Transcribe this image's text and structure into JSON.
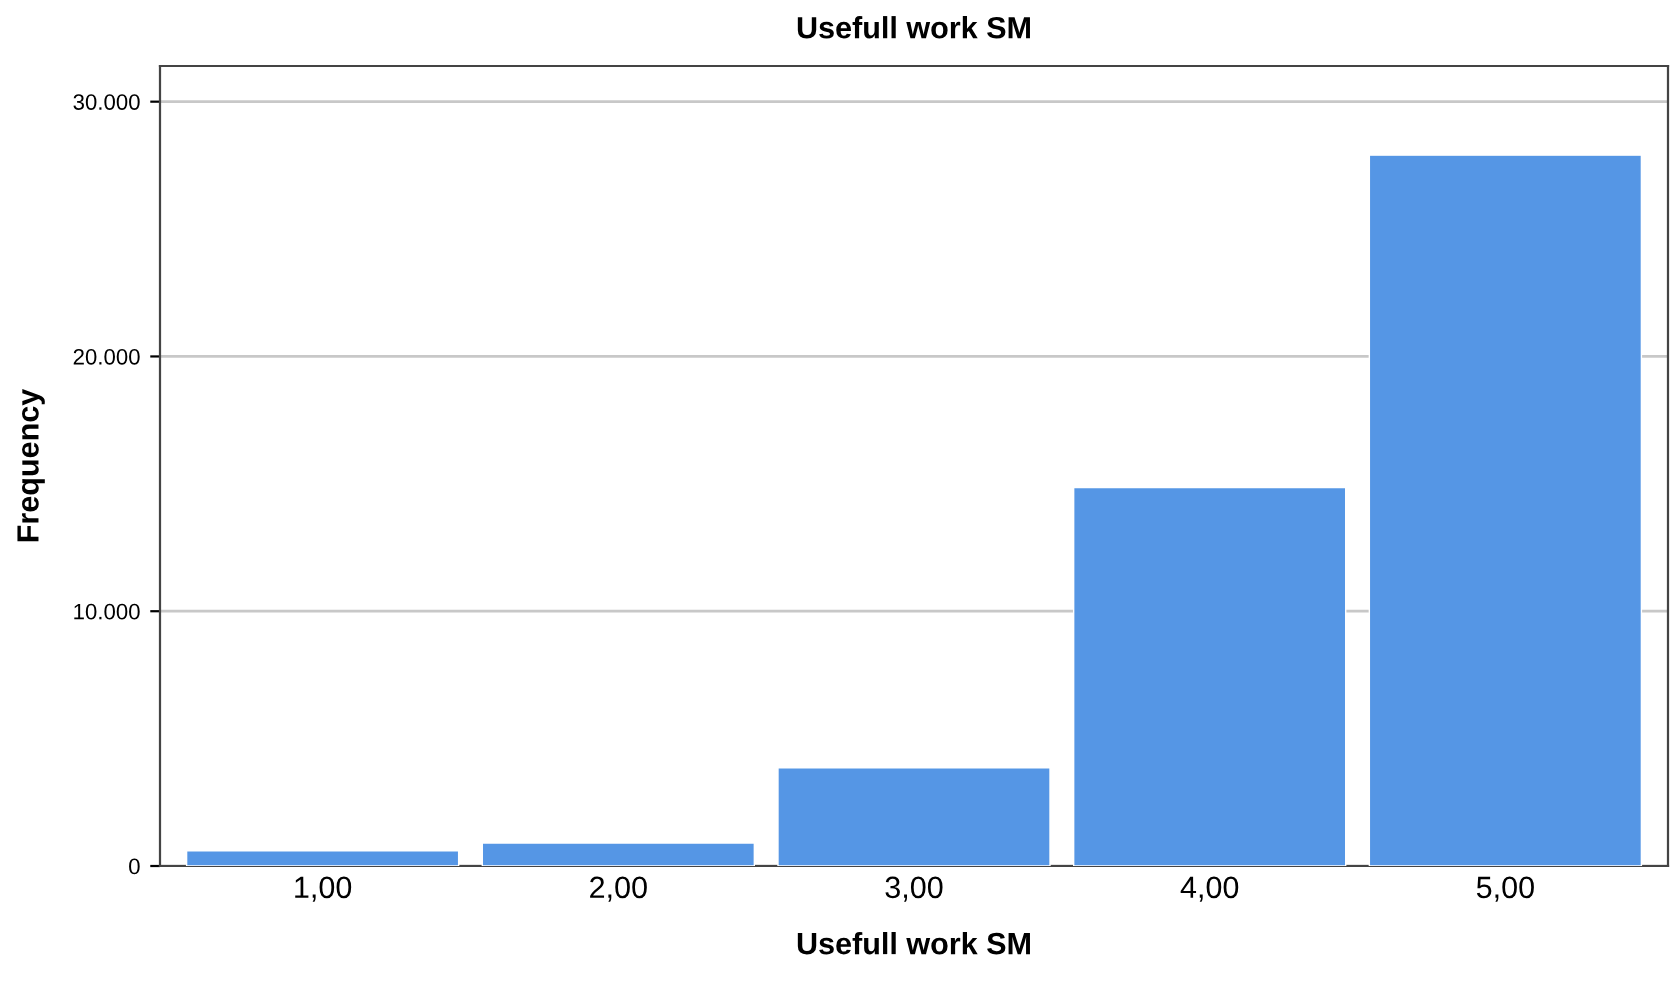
{
  "chart_data": {
    "type": "bar",
    "title": "Usefull work SM",
    "xlabel": "Usefull work SM",
    "ylabel": "Frequency",
    "categories": [
      "1,00",
      "2,00",
      "3,00",
      "4,00",
      "5,00"
    ],
    "values": [
      600,
      900,
      3850,
      14850,
      27900
    ],
    "color": "#5596e5",
    "ylim": [
      0,
      31400
    ],
    "yticks": [
      {
        "value": 0,
        "label": "0"
      },
      {
        "value": 10000,
        "label": "10.000"
      },
      {
        "value": 20000,
        "label": "20.000"
      },
      {
        "value": 30000,
        "label": "30.000"
      }
    ],
    "grid": "y",
    "legend": false
  }
}
